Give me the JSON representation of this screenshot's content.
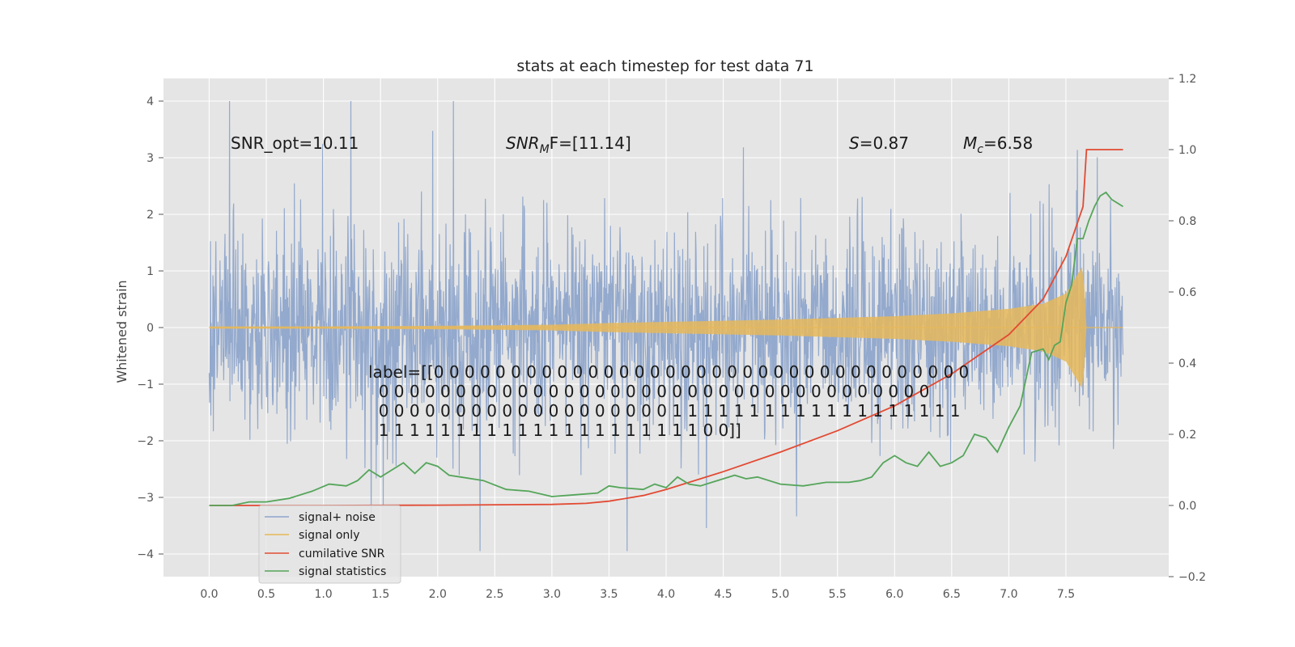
{
  "chart_data": {
    "type": "line",
    "title": "stats at each timestep for test data 71",
    "ylabel": "Whitened strain",
    "xlabel": "",
    "xlim": [
      -0.4,
      8.4
    ],
    "ylim": [
      -4.4,
      4.4
    ],
    "y2lim": [
      -0.2,
      1.2
    ],
    "grid": true,
    "legend_position": "lower-left",
    "x_ticks": [
      0.0,
      0.5,
      1.0,
      1.5,
      2.0,
      2.5,
      3.0,
      3.5,
      4.0,
      4.5,
      5.0,
      5.5,
      6.0,
      6.5,
      7.0,
      7.5
    ],
    "x_tick_labels": [
      "0.0",
      "0.5",
      "1.0",
      "1.5",
      "2.0",
      "2.5",
      "3.0",
      "3.5",
      "4.0",
      "4.5",
      "5.0",
      "5.5",
      "6.0",
      "6.5",
      "7.0",
      "7.5"
    ],
    "y_ticks": [
      -4,
      -3,
      -2,
      -1,
      0,
      1,
      2,
      3,
      4
    ],
    "y_tick_labels": [
      "−4",
      "−3",
      "−2",
      "−1",
      "0",
      "1",
      "2",
      "3",
      "4"
    ],
    "y2_ticks": [
      -0.2,
      0.0,
      0.2,
      0.4,
      0.6,
      0.8,
      1.0,
      1.2
    ],
    "y2_tick_labels": [
      "−0.2",
      "0.0",
      "0.2",
      "0.4",
      "0.6",
      "0.8",
      "1.0",
      "1.2"
    ],
    "annotations": {
      "snr_opt": "SNR_opt=10.11",
      "snr_mf_main": "SNR",
      "snr_mf_sub": "M",
      "snr_mf_rest": "F=[11.14]",
      "s_main": "S",
      "s_rest": "=0.87",
      "mc_main": "M",
      "mc_sub": "c",
      "mc_rest": "=6.58"
    },
    "label_lines": [
      "label=[[0 0 0 0 0 0 0 0 0 0 0 0 0 0 0 0 0 0 0 0 0 0 0 0 0 0 0 0 0 0 0 0 0 0 0",
      "  0 0 0 0 0 0 0 0 0 0 0 0 0 0 0 0 0 0 0 0 0 0 0 0 0 0 0 0 0 0 0 0 0 0 0 0",
      "  0 0 0 0 0 0 0 0 0 0 0 0 0 0 0 0 0 0 0 1 1 1 1 1 1 1 1 1 1 1 1 1 1 1 1 1 1 1",
      "  1 1 1 1 1 1 1 1 1 1 1 1 1 1 1 1 1 1 1 1 1 0 0]]"
    ],
    "series": [
      {
        "name": "signal+ noise",
        "color": "#8ea5cb",
        "axis": "left",
        "x_range": [
          0.0,
          8.0
        ],
        "envelope_std": 0.9,
        "note_values": "dense noise trace, values read as amplitude envelope"
      },
      {
        "name": "signal only",
        "color": "#e6b85a",
        "axis": "left",
        "x": [
          0.0,
          1.0,
          2.0,
          3.0,
          3.5,
          4.0,
          4.5,
          5.0,
          5.5,
          6.0,
          6.5,
          7.0,
          7.3,
          7.5,
          7.65,
          7.68,
          8.0
        ],
        "amplitude": [
          0.02,
          0.02,
          0.03,
          0.05,
          0.08,
          0.1,
          0.12,
          0.14,
          0.17,
          0.2,
          0.25,
          0.33,
          0.42,
          0.6,
          1.1,
          0.0,
          0.0
        ]
      },
      {
        "name": "cumilative SNR",
        "color": "#e24a33",
        "axis": "right",
        "x": [
          0.0,
          1.0,
          2.0,
          3.0,
          3.3,
          3.5,
          3.8,
          4.0,
          4.5,
          5.0,
          5.5,
          6.0,
          6.5,
          7.0,
          7.3,
          7.5,
          7.65,
          7.68,
          7.8,
          8.0
        ],
        "values": [
          0.0,
          0.0,
          0.001,
          0.003,
          0.006,
          0.012,
          0.028,
          0.045,
          0.095,
          0.15,
          0.21,
          0.28,
          0.37,
          0.48,
          0.58,
          0.7,
          0.84,
          1.0,
          1.0,
          1.0
        ]
      },
      {
        "name": "signal statistics",
        "color": "#55a55a",
        "axis": "right",
        "x": [
          0.0,
          0.2,
          0.35,
          0.5,
          0.7,
          0.9,
          1.05,
          1.2,
          1.3,
          1.4,
          1.5,
          1.6,
          1.7,
          1.8,
          1.9,
          2.0,
          2.1,
          2.2,
          2.4,
          2.6,
          2.8,
          3.0,
          3.2,
          3.4,
          3.5,
          3.6,
          3.8,
          3.9,
          4.0,
          4.1,
          4.2,
          4.3,
          4.4,
          4.5,
          4.6,
          4.7,
          4.8,
          5.0,
          5.2,
          5.3,
          5.4,
          5.6,
          5.7,
          5.8,
          5.9,
          6.0,
          6.1,
          6.2,
          6.3,
          6.4,
          6.5,
          6.6,
          6.7,
          6.8,
          6.9,
          7.0,
          7.1,
          7.2,
          7.3,
          7.35,
          7.4,
          7.45,
          7.5,
          7.55,
          7.6,
          7.65,
          7.7,
          7.75,
          7.8,
          7.85,
          7.9,
          7.95,
          8.0
        ],
        "values": [
          0.0,
          0.0,
          0.01,
          0.01,
          0.02,
          0.04,
          0.06,
          0.055,
          0.07,
          0.1,
          0.08,
          0.1,
          0.12,
          0.09,
          0.12,
          0.11,
          0.085,
          0.08,
          0.07,
          0.045,
          0.04,
          0.025,
          0.03,
          0.035,
          0.055,
          0.05,
          0.045,
          0.06,
          0.05,
          0.08,
          0.06,
          0.055,
          0.065,
          0.075,
          0.085,
          0.075,
          0.08,
          0.06,
          0.055,
          0.06,
          0.065,
          0.065,
          0.07,
          0.08,
          0.12,
          0.14,
          0.12,
          0.11,
          0.15,
          0.11,
          0.12,
          0.14,
          0.2,
          0.19,
          0.15,
          0.22,
          0.28,
          0.43,
          0.44,
          0.41,
          0.45,
          0.46,
          0.57,
          0.62,
          0.75,
          0.75,
          0.8,
          0.84,
          0.87,
          0.88,
          0.86,
          0.85,
          0.84
        ]
      }
    ]
  }
}
